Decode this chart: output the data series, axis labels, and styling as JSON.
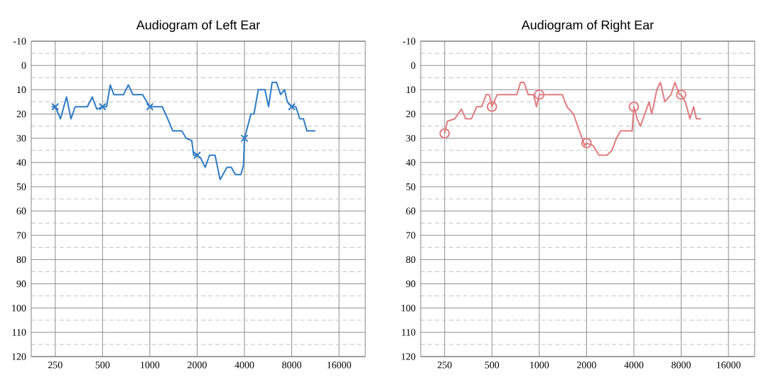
{
  "chart_data": [
    {
      "type": "line",
      "title": "Audiogram of Left Ear",
      "log": "x",
      "grid": true,
      "xlim": [
        176,
        23500
      ],
      "ylim": [
        120,
        -10
      ],
      "xticks": [
        250,
        500,
        1000,
        2000,
        4000,
        8000,
        16000
      ],
      "yticks": [
        -10,
        0,
        10,
        20,
        30,
        40,
        50,
        60,
        70,
        80,
        90,
        100,
        110,
        120
      ],
      "series": [
        {
          "color": "#2f7cc4",
          "marker": "none",
          "x": [
            237,
            250,
            270,
            295,
            315,
            335,
            400,
            430,
            460,
            500,
            530,
            560,
            590,
            680,
            730,
            780,
            900,
            1000,
            1200,
            1300,
            1400,
            1600,
            1700,
            1850,
            1900,
            2000,
            2100,
            2250,
            2400,
            2600,
            2800,
            3100,
            3300,
            3500,
            3800,
            3950,
            4000,
            4200,
            4400,
            4600,
            4900,
            5400,
            5700,
            6000,
            6400,
            6800,
            7200,
            7500,
            8000,
            8500,
            9000,
            9500,
            10000,
            11300
          ],
          "values": [
            17,
            17,
            22,
            13,
            22,
            17,
            17,
            13,
            18,
            17,
            17,
            8,
            12,
            12,
            8,
            12,
            12,
            17,
            17,
            22,
            27,
            27,
            30,
            31,
            37,
            37,
            38,
            42,
            37,
            37,
            47,
            42,
            42,
            45,
            45,
            41,
            30,
            25,
            20,
            20,
            10,
            10,
            17,
            7,
            7,
            12,
            10,
            15,
            17,
            17,
            22,
            22,
            27,
            27
          ]
        },
        {
          "type": "scatter",
          "color": "#2f7cc4",
          "marker": "cross",
          "x": [
            250,
            500,
            1000,
            2000,
            4000,
            8000
          ],
          "values": [
            17,
            17,
            17,
            37,
            30,
            17
          ]
        }
      ]
    },
    {
      "type": "line",
      "title": "Audiogram of Right Ear",
      "log": "x",
      "grid": true,
      "xlim": [
        176,
        23500
      ],
      "ylim": [
        120,
        -10
      ],
      "xticks": [
        250,
        500,
        1000,
        2000,
        4000,
        8000,
        16000
      ],
      "yticks": [
        -10,
        0,
        10,
        20,
        30,
        40,
        50,
        60,
        70,
        80,
        90,
        100,
        110,
        120
      ],
      "series": [
        {
          "color": "#e07c80",
          "marker": "none",
          "x": [
            250,
            260,
            290,
            320,
            340,
            370,
            400,
            430,
            460,
            480,
            500,
            540,
            650,
            720,
            760,
            800,
            850,
            920,
            960,
            1000,
            1200,
            1400,
            1500,
            1650,
            1800,
            1950,
            2000,
            2200,
            2400,
            2700,
            2900,
            3100,
            3300,
            3900,
            4000,
            4200,
            4400,
            4700,
            5000,
            5200,
            5600,
            5900,
            6300,
            6900,
            7300,
            7800,
            8000,
            8500,
            9100,
            9600,
            10000,
            10700
          ],
          "values": [
            28,
            23,
            22,
            18,
            22,
            22,
            17,
            17,
            12,
            12,
            17,
            12,
            12,
            12,
            7,
            7,
            12,
            12,
            17,
            12,
            12,
            12,
            17,
            20,
            27,
            33,
            32,
            33,
            37,
            37,
            35,
            30,
            27,
            27,
            17,
            22,
            25,
            20,
            15,
            20,
            10,
            7,
            15,
            12,
            7,
            12,
            12,
            15,
            22,
            17,
            22,
            22
          ]
        },
        {
          "type": "scatter",
          "color": "#e07c80",
          "marker": "circle",
          "x": [
            250,
            500,
            1000,
            2000,
            4000,
            8000
          ],
          "values": [
            28,
            17,
            12,
            32,
            17,
            12
          ]
        }
      ]
    }
  ]
}
